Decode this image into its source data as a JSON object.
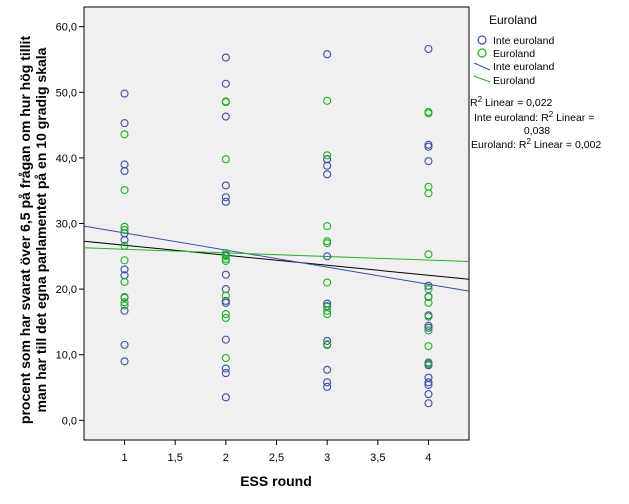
{
  "chart_data": {
    "type": "scatter",
    "xlabel": "ESS round",
    "ylabel": [
      "procent som har svarat över 6,5 på frågan om hur hög tillit",
      "man har till det egna parlamentet på en 10 gradig skala"
    ],
    "xlim": [
      0.6,
      4.4
    ],
    "ylim": [
      -3,
      63
    ],
    "xticks": [
      1,
      1.5,
      2,
      2.5,
      3,
      3.5,
      4
    ],
    "xtick_labels": [
      "1",
      "1,5",
      "2",
      "2,5",
      "3",
      "3,5",
      "4"
    ],
    "yticks": [
      0,
      10,
      20,
      30,
      40,
      50,
      60
    ],
    "ytick_labels": [
      "0,0",
      "10,0",
      "20,0",
      "30,0",
      "40,0",
      "50,0",
      "60,0"
    ],
    "colors": {
      "inte": "#3a4fa8",
      "euro": "#22b222",
      "total": "#000000",
      "plot_bg": "#f0f0f0"
    },
    "series": [
      {
        "name": "Inte euroland",
        "color": "#3a4fa8",
        "points": [
          [
            1,
            49.8
          ],
          [
            1,
            45.3
          ],
          [
            1,
            39.0
          ],
          [
            1,
            38.0
          ],
          [
            1,
            28.5
          ],
          [
            1,
            27.5
          ],
          [
            1,
            23.0
          ],
          [
            1,
            22.1
          ],
          [
            1,
            18.7
          ],
          [
            1,
            16.7
          ],
          [
            1,
            11.5
          ],
          [
            1,
            9.0
          ],
          [
            2,
            55.3
          ],
          [
            2,
            51.3
          ],
          [
            2,
            46.3
          ],
          [
            2,
            35.8
          ],
          [
            2,
            34.0
          ],
          [
            2,
            33.3
          ],
          [
            2,
            25.2
          ],
          [
            2,
            22.2
          ],
          [
            2,
            20.0
          ],
          [
            2,
            18.2
          ],
          [
            2,
            17.9
          ],
          [
            2,
            12.3
          ],
          [
            2,
            7.9
          ],
          [
            2,
            7.2
          ],
          [
            2,
            3.5
          ],
          [
            3,
            55.8
          ],
          [
            3,
            39.8
          ],
          [
            3,
            38.8
          ],
          [
            3,
            37.5
          ],
          [
            3,
            25.0
          ],
          [
            3,
            17.8
          ],
          [
            3,
            17.4
          ],
          [
            3,
            12.1
          ],
          [
            3,
            11.5
          ],
          [
            3,
            7.7
          ],
          [
            3,
            5.8
          ],
          [
            3,
            5.1
          ],
          [
            4,
            56.6
          ],
          [
            4,
            42.0
          ],
          [
            4,
            41.7
          ],
          [
            4,
            39.5
          ],
          [
            4,
            20.5
          ],
          [
            4,
            18.8
          ],
          [
            4,
            16.0
          ],
          [
            4,
            14.4
          ],
          [
            4,
            14.1
          ],
          [
            4,
            8.8
          ],
          [
            4,
            8.4
          ],
          [
            4,
            6.5
          ],
          [
            4,
            5.8
          ],
          [
            4,
            5.4
          ],
          [
            4,
            4.0
          ],
          [
            4,
            2.6
          ]
        ]
      },
      {
        "name": "Euroland",
        "color": "#22b222",
        "points": [
          [
            1,
            43.6
          ],
          [
            1,
            35.1
          ],
          [
            1,
            29.5
          ],
          [
            1,
            29.0
          ],
          [
            1,
            26.6
          ],
          [
            1,
            24.4
          ],
          [
            1,
            21.1
          ],
          [
            1,
            18.8
          ],
          [
            1,
            18.0
          ],
          [
            1,
            17.5
          ],
          [
            2,
            48.6
          ],
          [
            2,
            48.5
          ],
          [
            2,
            39.8
          ],
          [
            2,
            25.5
          ],
          [
            2,
            25.0
          ],
          [
            2,
            24.6
          ],
          [
            2,
            24.3
          ],
          [
            2,
            19.0
          ],
          [
            2,
            16.2
          ],
          [
            2,
            15.6
          ],
          [
            2,
            9.5
          ],
          [
            3,
            48.7
          ],
          [
            3,
            40.4
          ],
          [
            3,
            29.6
          ],
          [
            3,
            27.3
          ],
          [
            3,
            27.0
          ],
          [
            3,
            21.0
          ],
          [
            3,
            17.3
          ],
          [
            3,
            16.7
          ],
          [
            3,
            16.2
          ],
          [
            3,
            11.6
          ],
          [
            4,
            47.0
          ],
          [
            4,
            46.8
          ],
          [
            4,
            35.6
          ],
          [
            4,
            34.6
          ],
          [
            4,
            25.3
          ],
          [
            4,
            20.0
          ],
          [
            4,
            18.9
          ],
          [
            4,
            17.9
          ],
          [
            4,
            15.8
          ],
          [
            4,
            13.7
          ],
          [
            4,
            11.3
          ],
          [
            4,
            8.6
          ]
        ]
      }
    ],
    "fit_lines": [
      {
        "name": "Total",
        "color": "#000000",
        "x": [
          0.6,
          4.4
        ],
        "y": [
          27.3,
          21.5
        ]
      },
      {
        "name": "Inte euroland",
        "color": "#3a4fa8",
        "x": [
          0.6,
          4.4
        ],
        "y": [
          29.6,
          19.7
        ]
      },
      {
        "name": "Euroland",
        "color": "#22b222",
        "x": [
          0.6,
          4.4
        ],
        "y": [
          26.3,
          24.2
        ]
      }
    ],
    "legend": {
      "title": "Euroland",
      "entries": [
        {
          "label": "Inte euroland",
          "kind": "marker",
          "color": "#3a4fa8"
        },
        {
          "label": "Euroland",
          "kind": "marker",
          "color": "#22b222"
        },
        {
          "label": "Inte euroland",
          "kind": "line",
          "color": "#3a4fa8"
        },
        {
          "label": "Euroland",
          "kind": "line",
          "color": "#22b222"
        }
      ]
    },
    "annotations": {
      "r2_total_prefix": "R",
      "r2_total_sup": "2",
      "r2_total_suffix": " Linear = 0,022",
      "r2_inte_prefix": "Inte euroland: R",
      "r2_inte_sup": "2",
      "r2_inte_suffix": " Linear =",
      "r2_inte_value": "0,038",
      "r2_euro_prefix": "Euroland: R",
      "r2_euro_sup": "2",
      "r2_euro_suffix": " Linear = 0,002"
    }
  }
}
